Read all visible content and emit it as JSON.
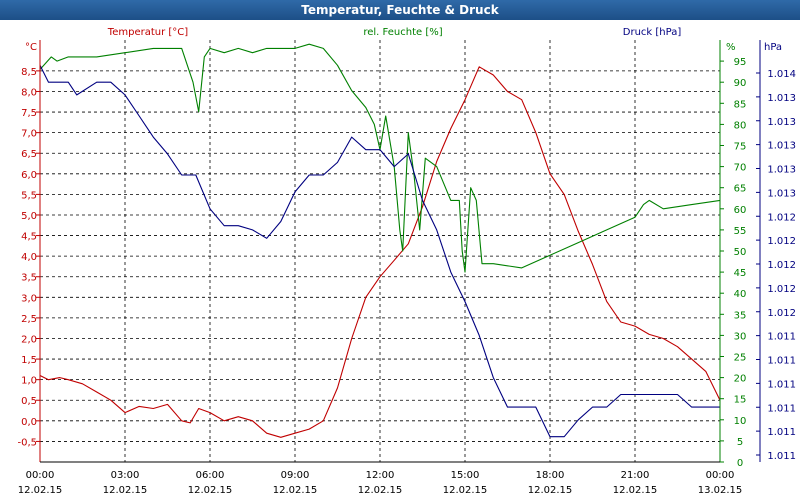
{
  "window": {
    "title": "Temperatur, Feuchte & Druck"
  },
  "chart_data": {
    "type": "line",
    "title": "Temperatur, Feuchte & Druck",
    "xlabel": "",
    "xlim": [
      0,
      24
    ],
    "x_ticks": [
      {
        "time": "00:00",
        "date": "12.02.15"
      },
      {
        "time": "03:00",
        "date": "12.02.15"
      },
      {
        "time": "06:00",
        "date": "12.02.15"
      },
      {
        "time": "09:00",
        "date": "12.02.15"
      },
      {
        "time": "12:00",
        "date": "12.02.15"
      },
      {
        "time": "15:00",
        "date": "12.02.15"
      },
      {
        "time": "18:00",
        "date": "12.02.15"
      },
      {
        "time": "21:00",
        "date": "12.02.15"
      },
      {
        "time": "00:00",
        "date": "13.02.15"
      }
    ],
    "axes": {
      "temperature": {
        "label": "Temperatur [°C]",
        "unit": "°C",
        "color": "#c00000",
        "ylim": [
          -1.0,
          9.25
        ],
        "ticks": [
          "-0,5",
          "0,0",
          "0,5",
          "1,0",
          "1,5",
          "2,0",
          "2,5",
          "3,0",
          "3,5",
          "4,0",
          "4,5",
          "5,0",
          "5,5",
          "6,0",
          "6,5",
          "7,0",
          "7,5",
          "8,0",
          "8,5"
        ]
      },
      "humidity": {
        "label": "rel. Feuchte [%]",
        "unit": "%",
        "color": "#008000",
        "ylim": [
          0,
          100
        ],
        "ticks": [
          "0",
          "5",
          "10",
          "15",
          "20",
          "25",
          "30",
          "35",
          "40",
          "45",
          "50",
          "55",
          "60",
          "65",
          "70",
          "75",
          "80",
          "85",
          "90",
          "95"
        ]
      },
      "pressure": {
        "label": "Druck [hPa]",
        "unit": "hPa",
        "color": "#000080",
        "ticks": [
          "1.011",
          "1.011",
          "1.011",
          "1.011",
          "1.011",
          "1.011",
          "1.012",
          "1.012",
          "1.012",
          "1.012",
          "1.012",
          "1.013",
          "1.013",
          "1.013",
          "1.013",
          "1.013",
          "1.014"
        ]
      }
    },
    "series": [
      {
        "name": "Temperatur",
        "axis": "temperature",
        "color": "#c00000",
        "points": [
          [
            0,
            1.1
          ],
          [
            0.3,
            1.0
          ],
          [
            0.7,
            1.05
          ],
          [
            1,
            1.0
          ],
          [
            1.5,
            0.9
          ],
          [
            2,
            0.7
          ],
          [
            2.5,
            0.5
          ],
          [
            3,
            0.2
          ],
          [
            3.5,
            0.35
          ],
          [
            4,
            0.3
          ],
          [
            4.5,
            0.4
          ],
          [
            5,
            0.0
          ],
          [
            5.3,
            -0.05
          ],
          [
            5.6,
            0.3
          ],
          [
            6,
            0.2
          ],
          [
            6.5,
            0.0
          ],
          [
            7,
            0.1
          ],
          [
            7.5,
            0.0
          ],
          [
            8,
            -0.3
          ],
          [
            8.5,
            -0.4
          ],
          [
            9,
            -0.3
          ],
          [
            9.5,
            -0.2
          ],
          [
            10,
            0.0
          ],
          [
            10.5,
            0.8
          ],
          [
            11,
            2.0
          ],
          [
            11.5,
            3.0
          ],
          [
            12,
            3.5
          ],
          [
            12.5,
            3.9
          ],
          [
            13,
            4.3
          ],
          [
            13.5,
            5.2
          ],
          [
            14,
            6.3
          ],
          [
            14.5,
            7.1
          ],
          [
            15,
            7.8
          ],
          [
            15.5,
            8.6
          ],
          [
            16,
            8.4
          ],
          [
            16.5,
            8.0
          ],
          [
            17,
            7.8
          ],
          [
            17.5,
            7.0
          ],
          [
            18,
            6.0
          ],
          [
            18.5,
            5.5
          ],
          [
            19,
            4.6
          ],
          [
            19.5,
            3.8
          ],
          [
            20,
            2.9
          ],
          [
            20.5,
            2.4
          ],
          [
            21,
            2.3
          ],
          [
            21.5,
            2.1
          ],
          [
            22,
            2.0
          ],
          [
            22.5,
            1.8
          ],
          [
            23,
            1.5
          ],
          [
            23.5,
            1.2
          ],
          [
            24,
            0.5
          ]
        ]
      },
      {
        "name": "rel. Feuchte",
        "axis": "humidity",
        "color": "#008000",
        "points": [
          [
            0,
            93
          ],
          [
            0.4,
            96
          ],
          [
            0.6,
            95
          ],
          [
            1,
            96
          ],
          [
            2,
            96
          ],
          [
            3,
            97
          ],
          [
            4,
            98
          ],
          [
            5,
            98
          ],
          [
            5.4,
            90
          ],
          [
            5.6,
            83
          ],
          [
            5.8,
            96
          ],
          [
            6,
            98
          ],
          [
            6.5,
            97
          ],
          [
            7,
            98
          ],
          [
            7.5,
            97
          ],
          [
            8,
            98
          ],
          [
            8.5,
            98
          ],
          [
            9,
            98
          ],
          [
            9.5,
            99
          ],
          [
            10,
            98
          ],
          [
            10.5,
            94
          ],
          [
            11,
            88
          ],
          [
            11.5,
            84
          ],
          [
            11.8,
            80
          ],
          [
            12,
            74
          ],
          [
            12.2,
            82
          ],
          [
            12.5,
            70
          ],
          [
            12.7,
            55
          ],
          [
            12.8,
            50
          ],
          [
            13,
            78
          ],
          [
            13.2,
            68
          ],
          [
            13.4,
            55
          ],
          [
            13.6,
            72
          ],
          [
            14,
            70
          ],
          [
            14.5,
            62
          ],
          [
            14.8,
            62
          ],
          [
            14.9,
            50
          ],
          [
            15,
            45
          ],
          [
            15.2,
            65
          ],
          [
            15.4,
            62
          ],
          [
            15.6,
            47
          ],
          [
            16,
            47
          ],
          [
            17,
            46
          ],
          [
            18,
            49
          ],
          [
            19,
            52
          ],
          [
            20,
            55
          ],
          [
            21,
            58
          ],
          [
            21.3,
            61
          ],
          [
            21.5,
            62
          ],
          [
            22,
            60
          ],
          [
            23,
            61
          ],
          [
            24,
            62
          ]
        ]
      },
      {
        "name": "Druck",
        "axis": "pressure",
        "color": "#000080",
        "points": [
          [
            0,
            0.94
          ],
          [
            0.3,
            0.9
          ],
          [
            1,
            0.9
          ],
          [
            1.3,
            0.87
          ],
          [
            2,
            0.9
          ],
          [
            2.5,
            0.9
          ],
          [
            3,
            0.87
          ],
          [
            3.5,
            0.82
          ],
          [
            4,
            0.77
          ],
          [
            4.5,
            0.73
          ],
          [
            5,
            0.68
          ],
          [
            5.5,
            0.68
          ],
          [
            6,
            0.6
          ],
          [
            6.5,
            0.56
          ],
          [
            7,
            0.56
          ],
          [
            7.5,
            0.55
          ],
          [
            8,
            0.53
          ],
          [
            8.5,
            0.57
          ],
          [
            9,
            0.64
          ],
          [
            9.5,
            0.68
          ],
          [
            10,
            0.68
          ],
          [
            10.5,
            0.71
          ],
          [
            11,
            0.77
          ],
          [
            11.5,
            0.74
          ],
          [
            12,
            0.74
          ],
          [
            12.5,
            0.7
          ],
          [
            13,
            0.73
          ],
          [
            13.5,
            0.62
          ],
          [
            14,
            0.55
          ],
          [
            14.5,
            0.45
          ],
          [
            15,
            0.38
          ],
          [
            15.5,
            0.3
          ],
          [
            16,
            0.2
          ],
          [
            16.5,
            0.13
          ],
          [
            17,
            0.13
          ],
          [
            17.5,
            0.13
          ],
          [
            18,
            0.06
          ],
          [
            18.5,
            0.06
          ],
          [
            19,
            0.1
          ],
          [
            19.5,
            0.13
          ],
          [
            20,
            0.13
          ],
          [
            20.5,
            0.16
          ],
          [
            21,
            0.16
          ],
          [
            21.5,
            0.16
          ],
          [
            22,
            0.16
          ],
          [
            22.5,
            0.16
          ],
          [
            23,
            0.13
          ],
          [
            24,
            0.13
          ]
        ]
      }
    ]
  }
}
